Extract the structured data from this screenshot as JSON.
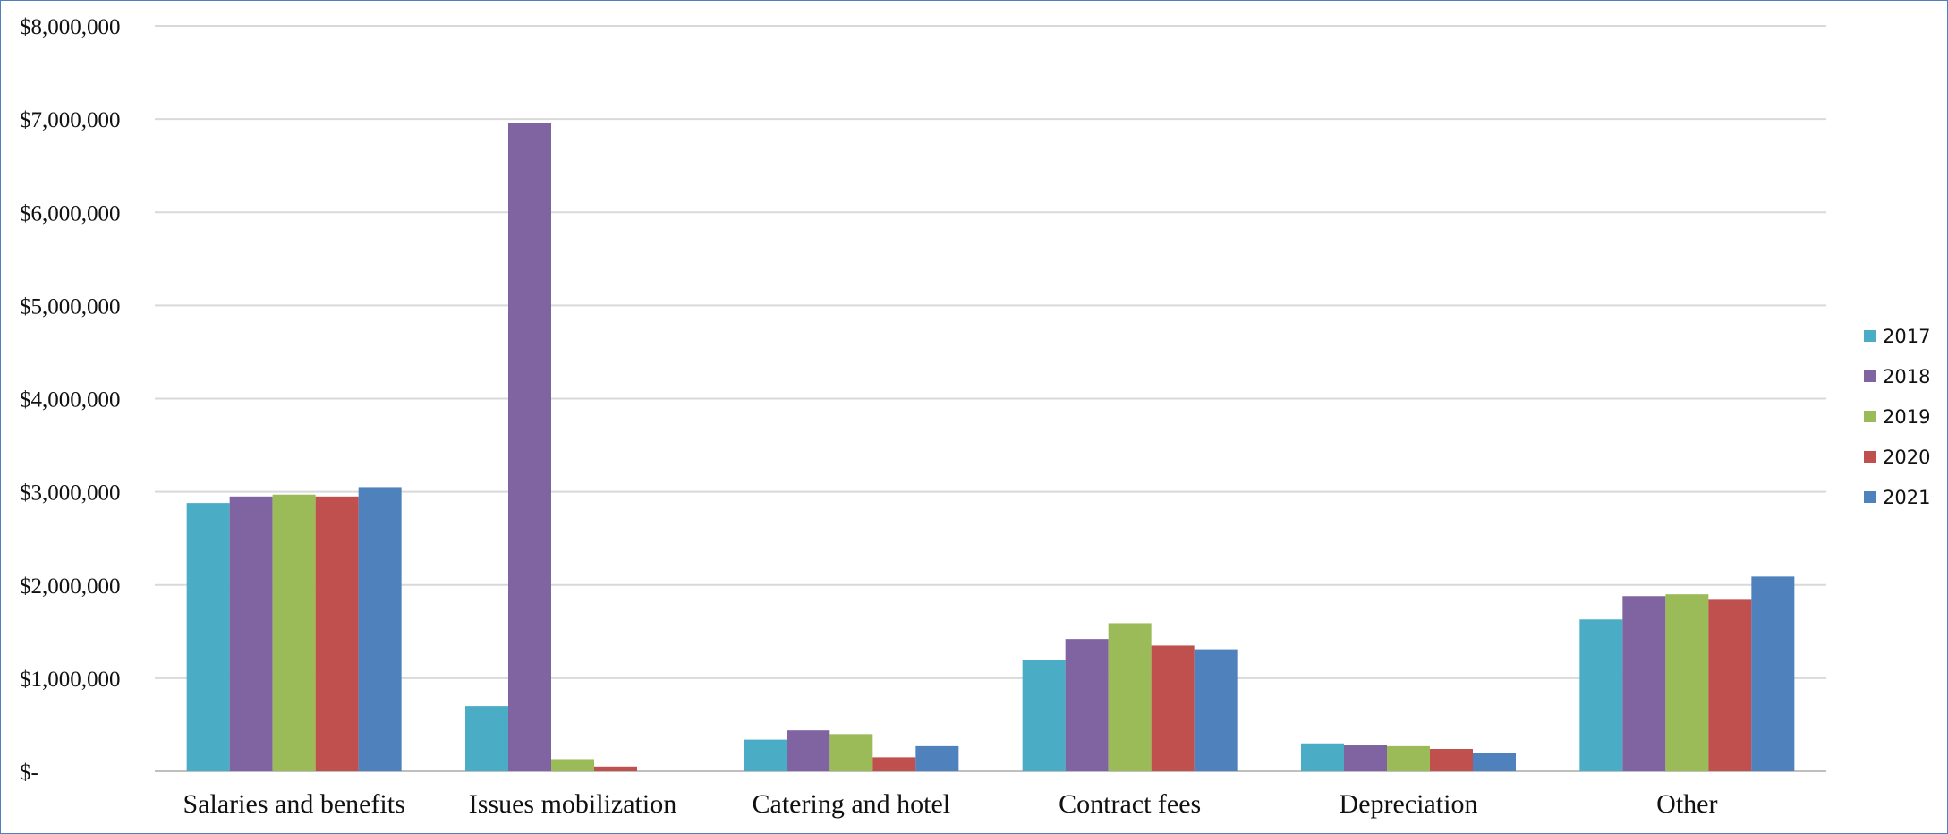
{
  "chart_data": {
    "type": "bar",
    "title": "",
    "xlabel": "",
    "ylabel": "",
    "categories": [
      "Salaries and benefits",
      "Issues mobilization",
      "Catering and hotel",
      "Contract fees",
      "Depreciation",
      "Other"
    ],
    "series": [
      {
        "name": "2017",
        "color": "#4bacc6",
        "values": [
          2880000,
          700000,
          340000,
          1200000,
          300000,
          1630000
        ]
      },
      {
        "name": "2018",
        "color": "#8064a2",
        "values": [
          2950000,
          6960000,
          440000,
          1420000,
          280000,
          1880000
        ]
      },
      {
        "name": "2019",
        "color": "#9bbb59",
        "values": [
          2970000,
          130000,
          400000,
          1590000,
          270000,
          1900000
        ]
      },
      {
        "name": "2020",
        "color": "#c0504d",
        "values": [
          2950000,
          50000,
          150000,
          1350000,
          240000,
          1850000
        ]
      },
      {
        "name": "2021",
        "color": "#4f81bd",
        "values": [
          3050000,
          0,
          270000,
          1310000,
          200000,
          2090000
        ]
      }
    ],
    "ylim": [
      0,
      8000000
    ],
    "yticks": [
      {
        "value": 0,
        "label": "$-"
      },
      {
        "value": 1000000,
        "label": "$1,000,000"
      },
      {
        "value": 2000000,
        "label": "$2,000,000"
      },
      {
        "value": 3000000,
        "label": "$3,000,000"
      },
      {
        "value": 4000000,
        "label": "$4,000,000"
      },
      {
        "value": 5000000,
        "label": "$5,000,000"
      },
      {
        "value": 6000000,
        "label": "$6,000,000"
      },
      {
        "value": 7000000,
        "label": "$7,000,000"
      },
      {
        "value": 8000000,
        "label": "$8,000,000"
      }
    ],
    "grid": true,
    "legend_position": "right"
  }
}
